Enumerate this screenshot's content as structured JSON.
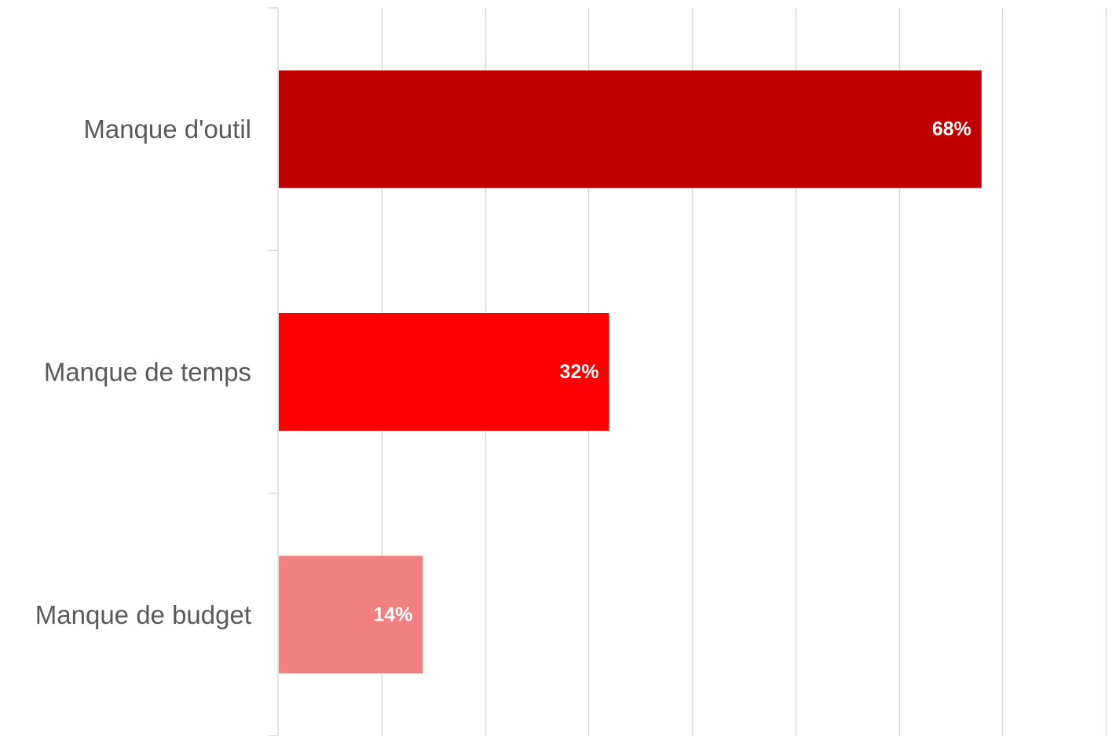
{
  "chart_data": {
    "type": "bar",
    "orientation": "horizontal",
    "categories": [
      "Manque d'outil",
      "Manque de temps",
      "Manque de budget"
    ],
    "values": [
      68,
      32,
      14
    ],
    "value_labels": [
      "68%",
      "32%",
      "14%"
    ],
    "colors": [
      "#c00000",
      "#ff0000",
      "#f28080"
    ],
    "xlim": [
      0,
      80
    ],
    "grid": "vertical",
    "legend": "none",
    "title": "",
    "xlabel": "",
    "ylabel": ""
  }
}
